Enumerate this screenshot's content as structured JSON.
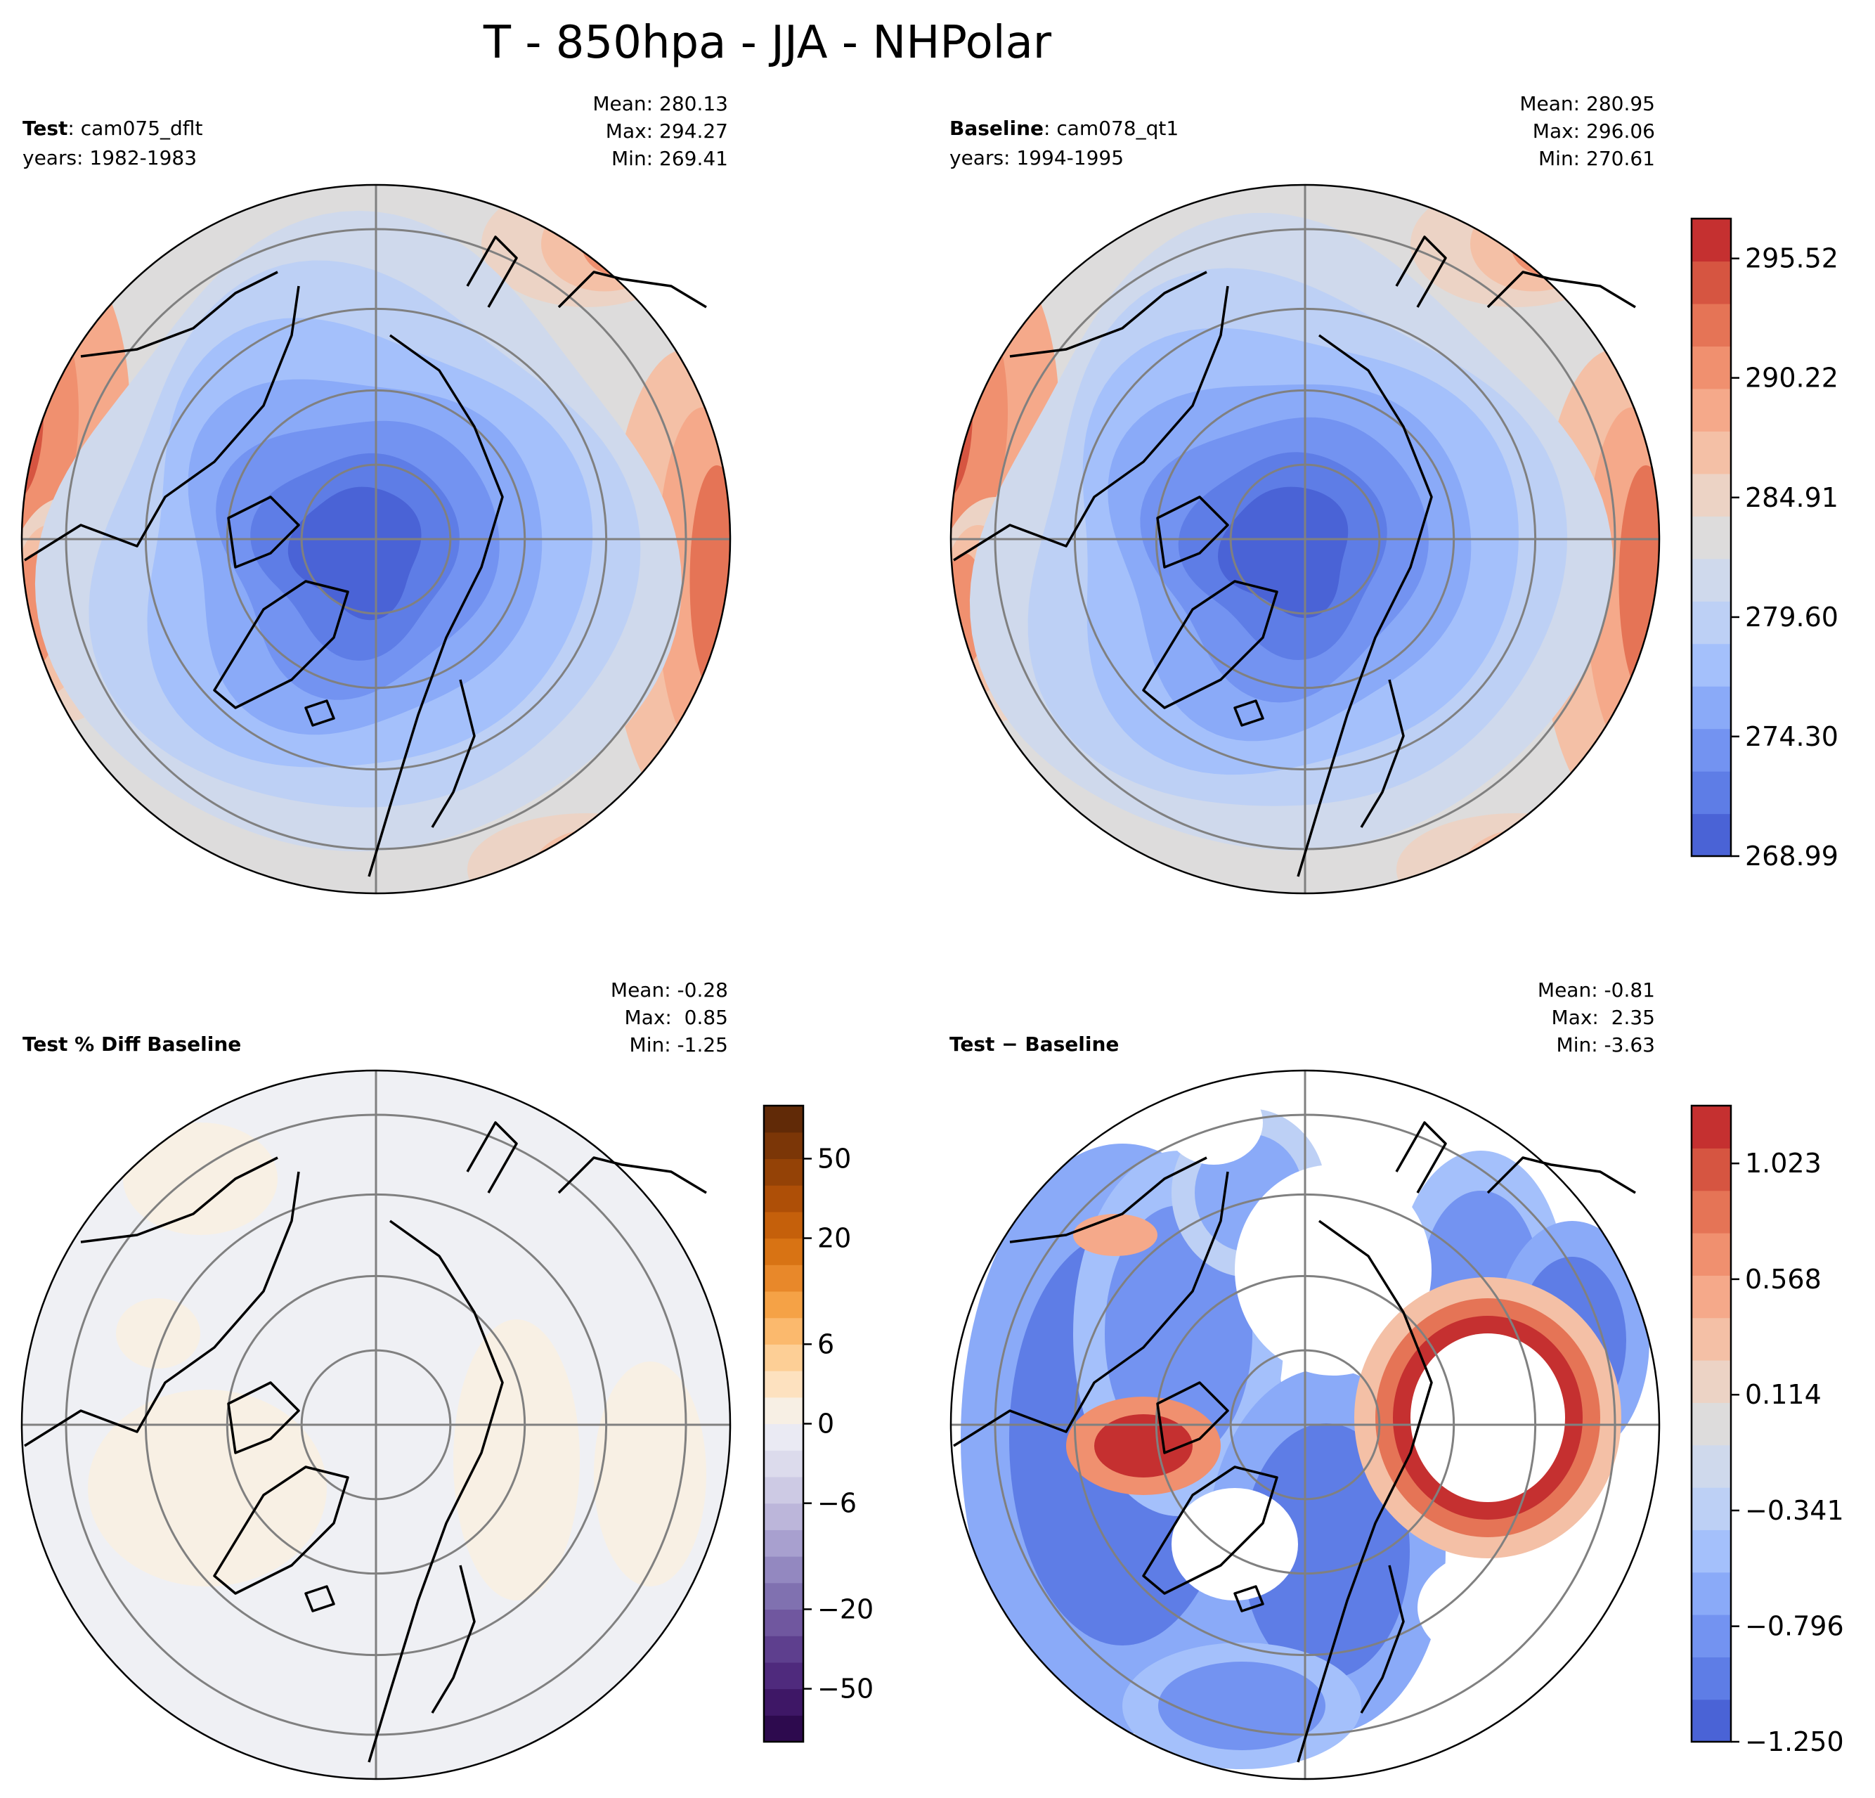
{
  "figure": {
    "title": "T - 850hpa - JJA - NHPolar"
  },
  "panels": {
    "test": {
      "label_bold": "Test",
      "label_rest": ": cam075_dflt",
      "years": "years: 1982-1983",
      "stats": [
        "Mean: 280.13",
        "Max: 294.27",
        "Min: 269.41"
      ]
    },
    "baseline": {
      "label_bold": "Baseline",
      "label_rest": ": cam078_qt1",
      "years": "years: 1994-1995",
      "stats": [
        "Mean: 280.95",
        "Max: 296.06",
        "Min: 270.61"
      ]
    },
    "pctdiff": {
      "label_bold": "Test % Diff Baseline",
      "stats": [
        "Mean: -0.28",
        "Max:  0.85",
        "Min: -1.25"
      ]
    },
    "diff": {
      "label_bold": "Test − Baseline",
      "stats": [
        "Mean: -0.81",
        "Max:  2.35",
        "Min: -3.63"
      ]
    }
  },
  "chart_data": [
    {
      "type": "heatmap",
      "projection": "north-polar-stereographic",
      "title": "Test: cam075_dflt, years: 1982-1983",
      "variable": "T",
      "level": "850hpa",
      "season": "JJA",
      "stats": {
        "mean": 280.13,
        "max": 294.27,
        "min": 269.41
      },
      "colormap": "coolwarm",
      "range": [
        268.99,
        297.29
      ]
    },
    {
      "type": "heatmap",
      "projection": "north-polar-stereographic",
      "title": "Baseline: cam078_qt1, years: 1994-1995",
      "variable": "T",
      "level": "850hpa",
      "season": "JJA",
      "stats": {
        "mean": 280.95,
        "max": 296.06,
        "min": 270.61
      },
      "colormap": "coolwarm",
      "range": [
        268.99,
        297.29
      ],
      "colorbar": {
        "ticks": [
          268.99,
          274.3,
          279.6,
          284.91,
          290.22,
          295.52
        ],
        "tick_labels": [
          "268.99",
          "274.30",
          "279.60",
          "284.91",
          "290.22",
          "295.52"
        ],
        "levels": 16
      }
    },
    {
      "type": "heatmap",
      "projection": "north-polar-stereographic",
      "title": "Test % Diff Baseline",
      "stats": {
        "mean": -0.28,
        "max": 0.85,
        "min": -1.25
      },
      "colormap": "PuOr_r",
      "colorbar": {
        "ticks": [
          -50,
          -20,
          -6,
          0,
          6,
          20,
          50
        ],
        "tick_labels": [
          "−50",
          "−20",
          "−6",
          "0",
          "6",
          "20",
          "50"
        ],
        "boundaries": [
          -100,
          -75,
          -50,
          -40,
          -30,
          -20,
          -15,
          -10,
          -8,
          -6,
          -4,
          -2,
          0,
          2,
          4,
          6,
          8,
          10,
          15,
          20,
          30,
          40,
          50,
          75,
          100
        ]
      }
    },
    {
      "type": "heatmap",
      "projection": "north-polar-stereographic",
      "title": "Test − Baseline",
      "stats": {
        "mean": -0.81,
        "max": 2.35,
        "min": -3.63
      },
      "colormap": "coolwarm",
      "range": [
        -1.25,
        1.25
      ],
      "colorbar": {
        "ticks": [
          -1.25,
          -0.796,
          -0.341,
          0.114,
          0.568,
          1.023
        ],
        "tick_labels": [
          "−1.250",
          "−0.796",
          "−0.341",
          "0.114",
          "0.568",
          "1.023"
        ],
        "levels": 16
      }
    }
  ],
  "colors": {
    "coolwarm": [
      "#4a63d6",
      "#5e7de6",
      "#7393f1",
      "#8aaaf8",
      "#a4c0fb",
      "#bdd0f5",
      "#cfd9ec",
      "#dddcdc",
      "#ecd3c5",
      "#f4c0a6",
      "#f5a98a",
      "#f0906f",
      "#e57456",
      "#d65541",
      "#c53030"
    ],
    "puor": [
      "#2d0a4e",
      "#3e1766",
      "#4f2a7d",
      "#5e3f8e",
      "#70579f",
      "#8071b0",
      "#9388c0",
      "#a8a0cf",
      "#bcb6da",
      "#cdcae4",
      "#dcdbec",
      "#eaeaf3",
      "#f7efe4",
      "#fde1bf",
      "#fdcf96",
      "#fbb96d",
      "#f5a246",
      "#e8882a",
      "#d87314",
      "#c5600b",
      "#ae4f07",
      "#944206",
      "#7b3607",
      "#612a07"
    ],
    "map_background": "#eff0f4",
    "grid": "#808080",
    "coast": "#000000",
    "diff_null": "#ffffff"
  }
}
